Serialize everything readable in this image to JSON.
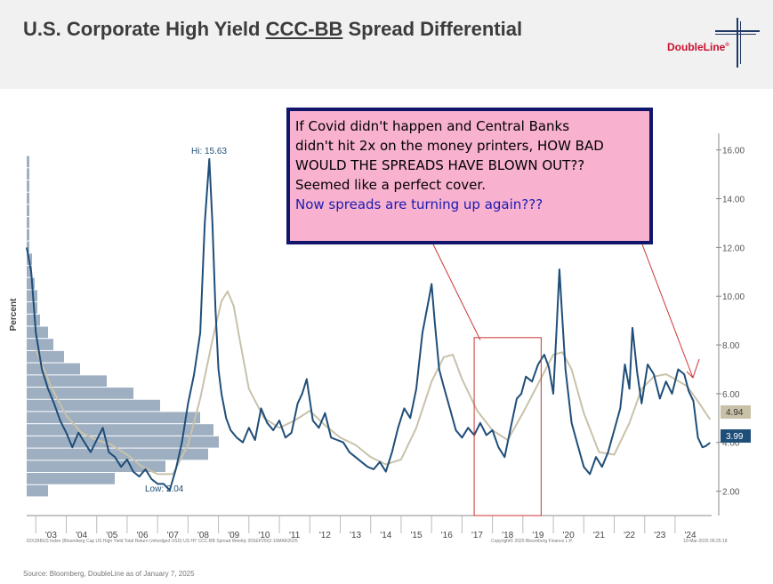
{
  "header": {
    "title_pre": "U.S. Corporate High Yield ",
    "title_underlined": "CCC-BB",
    "title_post": " Spread Differential",
    "logo_text": "DoubleLine",
    "logo_mark": "®"
  },
  "annotation": {
    "lines": [
      "If Covid didn't happen and Central Banks",
      "didn't hit 2x on the money printers, HOW BAD",
      "WOULD THE SPREADS HAVE BLOWN OUT??",
      "Seemed like a perfect cover."
    ],
    "highlight": "Now spreads are turning up again???",
    "highlight_color": "#1b1bb0",
    "box_fill": "#f8b1cf",
    "box_border": "#10166b"
  },
  "chart_data": {
    "type": "line",
    "ylabel": "Percent",
    "ylim": [
      1.0,
      16.5
    ],
    "xlim": [
      2002.7,
      2025.2
    ],
    "yticks": [
      2,
      4,
      6,
      8,
      10,
      12,
      14,
      16
    ],
    "ytick_labels": [
      "2.00",
      "4.00",
      "6.00",
      "8.00",
      "10.00",
      "12.00",
      "14.00",
      "16.00"
    ],
    "xtick_labels": [
      "'03",
      "'04",
      "'05",
      "'06",
      "'07",
      "'08",
      "'09",
      "'10",
      "'11",
      "'12",
      "'13",
      "'14",
      "'15",
      "'16",
      "'17",
      "'18",
      "'19",
      "'20",
      "'21",
      "'22",
      "'23",
      "'24"
    ],
    "series": [
      {
        "color": "#1f4e79",
        "x": [
          2002.7,
          2002.85,
          2003.0,
          2003.2,
          2003.4,
          2003.6,
          2003.8,
          2004.0,
          2004.2,
          2004.4,
          2004.6,
          2004.8,
          2005.0,
          2005.2,
          2005.4,
          2005.6,
          2005.8,
          2006.0,
          2006.2,
          2006.4,
          2006.6,
          2006.8,
          2007.0,
          2007.2,
          2007.4,
          2007.6,
          2007.8,
          2008.0,
          2008.2,
          2008.4,
          2008.55,
          2008.7,
          2008.8,
          2008.9,
          2009.0,
          2009.1,
          2009.25,
          2009.4,
          2009.6,
          2009.8,
          2010.0,
          2010.2,
          2010.4,
          2010.6,
          2010.8,
          2011.0,
          2011.2,
          2011.4,
          2011.6,
          2011.75,
          2011.9,
          2012.1,
          2012.3,
          2012.5,
          2012.7,
          2012.9,
          2013.1,
          2013.3,
          2013.5,
          2013.7,
          2013.9,
          2014.1,
          2014.3,
          2014.5,
          2014.7,
          2014.9,
          2015.1,
          2015.3,
          2015.5,
          2015.7,
          2015.9,
          2016.0,
          2016.1,
          2016.25,
          2016.4,
          2016.6,
          2016.8,
          2017.0,
          2017.2,
          2017.4,
          2017.6,
          2017.8,
          2018.0,
          2018.2,
          2018.4,
          2018.6,
          2018.8,
          2018.95,
          2019.1,
          2019.3,
          2019.5,
          2019.7,
          2019.85,
          2020.0,
          2020.1,
          2020.2,
          2020.3,
          2020.4,
          2020.6,
          2020.8,
          2021.0,
          2021.2,
          2021.4,
          2021.6,
          2021.8,
          2022.0,
          2022.2,
          2022.35,
          2022.5,
          2022.6,
          2022.75,
          2022.9,
          2023.1,
          2023.3,
          2023.5,
          2023.7,
          2023.9,
          2024.1,
          2024.3,
          2024.45,
          2024.6,
          2024.75,
          2024.9,
          2025.0,
          2025.15
        ],
        "y": [
          12.0,
          11.0,
          8.5,
          7.0,
          6.2,
          5.6,
          4.9,
          4.4,
          3.8,
          4.4,
          4.0,
          3.6,
          4.1,
          4.6,
          3.6,
          3.4,
          3.0,
          3.3,
          2.8,
          2.6,
          2.9,
          2.5,
          2.3,
          2.3,
          2.04,
          2.9,
          4.0,
          5.6,
          6.8,
          8.5,
          13.0,
          15.63,
          13.0,
          9.5,
          7.0,
          6.0,
          5.0,
          4.5,
          4.2,
          4.0,
          4.6,
          4.1,
          5.4,
          4.8,
          4.5,
          4.9,
          4.2,
          4.4,
          5.6,
          6.0,
          6.6,
          4.9,
          4.6,
          5.2,
          4.2,
          4.1,
          4.0,
          3.6,
          3.4,
          3.2,
          3.0,
          2.9,
          3.2,
          2.8,
          3.6,
          4.6,
          5.4,
          5.0,
          6.2,
          8.5,
          9.8,
          10.5,
          9.0,
          7.0,
          6.3,
          5.4,
          4.5,
          4.2,
          4.6,
          4.3,
          4.8,
          4.3,
          4.5,
          3.8,
          3.4,
          4.6,
          5.8,
          6.0,
          6.7,
          6.5,
          7.2,
          7.6,
          7.1,
          6.0,
          8.5,
          11.1,
          9.0,
          7.0,
          4.8,
          3.9,
          3.0,
          2.7,
          3.4,
          3.0,
          3.6,
          4.5,
          5.4,
          7.2,
          6.2,
          8.7,
          6.9,
          5.6,
          7.2,
          6.8,
          5.8,
          6.5,
          6.0,
          7.0,
          6.8,
          6.1,
          5.7,
          4.2,
          3.8,
          3.85,
          3.99
        ]
      },
      {
        "color": "#c8c2aa",
        "x": [
          2003.0,
          2003.5,
          2004.0,
          2004.5,
          2005.0,
          2005.5,
          2006.0,
          2006.5,
          2007.0,
          2007.5,
          2008.0,
          2008.4,
          2008.8,
          2009.1,
          2009.3,
          2009.5,
          2009.7,
          2010.0,
          2010.5,
          2011.0,
          2011.5,
          2012.0,
          2012.5,
          2013.0,
          2013.5,
          2014.0,
          2014.5,
          2015.0,
          2015.5,
          2016.0,
          2016.4,
          2016.7,
          2017.0,
          2017.5,
          2018.0,
          2018.5,
          2019.0,
          2019.5,
          2020.0,
          2020.3,
          2020.6,
          2021.0,
          2021.5,
          2022.0,
          2022.5,
          2022.9,
          2023.3,
          2023.7,
          2024.0,
          2024.4,
          2024.8,
          2025.15
        ],
        "y": [
          7.8,
          6.3,
          5.1,
          4.4,
          4.1,
          3.9,
          3.5,
          3.0,
          2.7,
          2.7,
          3.9,
          5.8,
          8.2,
          9.8,
          10.2,
          9.6,
          8.2,
          6.2,
          5.0,
          4.6,
          4.9,
          5.3,
          4.7,
          4.2,
          3.9,
          3.4,
          3.1,
          3.3,
          4.6,
          6.5,
          7.5,
          7.6,
          6.6,
          5.3,
          4.5,
          4.1,
          5.2,
          6.4,
          7.6,
          7.7,
          7.0,
          5.2,
          3.6,
          3.5,
          4.8,
          6.2,
          6.7,
          6.8,
          6.6,
          6.3,
          5.6,
          4.94
        ]
      }
    ],
    "annotations": {
      "high_label": "Hi: 15.63",
      "low_label": "Low: 2.04",
      "last_moving_average": "4.94",
      "last_value": "3.99"
    },
    "histogram": {
      "color": "#7e94ad",
      "bins": [
        {
          "y": 15.5,
          "len": 1
        },
        {
          "y": 15.0,
          "len": 1
        },
        {
          "y": 14.5,
          "len": 1
        },
        {
          "y": 14.0,
          "len": 1
        },
        {
          "y": 13.5,
          "len": 1
        },
        {
          "y": 13.0,
          "len": 1
        },
        {
          "y": 12.5,
          "len": 1
        },
        {
          "y": 12.0,
          "len": 1
        },
        {
          "y": 11.5,
          "len": 2
        },
        {
          "y": 11.0,
          "len": 2
        },
        {
          "y": 10.5,
          "len": 3
        },
        {
          "y": 10.0,
          "len": 4
        },
        {
          "y": 9.5,
          "len": 4
        },
        {
          "y": 9.0,
          "len": 5
        },
        {
          "y": 8.5,
          "len": 8
        },
        {
          "y": 8.0,
          "len": 10
        },
        {
          "y": 7.5,
          "len": 14
        },
        {
          "y": 7.0,
          "len": 20
        },
        {
          "y": 6.5,
          "len": 30
        },
        {
          "y": 6.0,
          "len": 40
        },
        {
          "y": 5.5,
          "len": 50
        },
        {
          "y": 5.0,
          "len": 65
        },
        {
          "y": 4.5,
          "len": 70
        },
        {
          "y": 4.0,
          "len": 72
        },
        {
          "y": 3.5,
          "len": 68
        },
        {
          "y": 3.0,
          "len": 52
        },
        {
          "y": 2.5,
          "len": 33
        },
        {
          "y": 2.0,
          "len": 8
        }
      ]
    },
    "highlight_rect": {
      "x": [
        2017.4,
        2019.6
      ],
      "y": [
        1.0,
        8.3
      ],
      "color": "#cc3333"
    },
    "grid": false
  },
  "footnotes": {
    "left": "IDX1BBUS Index (Bloomberg Cap US High Yield Total Return Unhedged USD) US HY CCC-BB Spread   Weekly 20SEP2002-10MAR2025",
    "mid": "Copyright© 2025 Bloomberg Finance L.P.",
    "right": "10-Mar-2025 09:25:18",
    "source": "Source: Bloomberg, DoubleLine as of January 7, 2025"
  }
}
